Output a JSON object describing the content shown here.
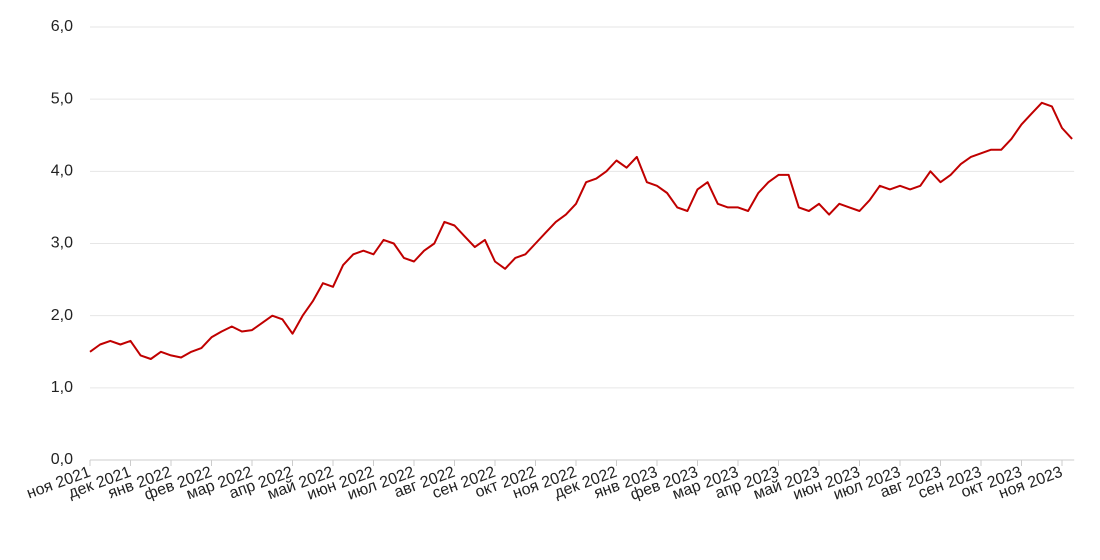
{
  "chart_data": {
    "type": "line",
    "categories": [
      "ноя 2021",
      null,
      null,
      null,
      "дек 2021",
      null,
      null,
      null,
      "янв 2022",
      null,
      null,
      null,
      "фев 2022",
      null,
      null,
      null,
      "мар 2022",
      null,
      null,
      null,
      "апр 2022",
      null,
      null,
      null,
      "май 2022",
      null,
      null,
      null,
      "июн 2022",
      null,
      null,
      null,
      "июл 2022",
      null,
      null,
      null,
      "авг 2022",
      null,
      null,
      null,
      "сен 2022",
      null,
      null,
      null,
      "окт 2022",
      null,
      null,
      null,
      "ноя 2022",
      null,
      null,
      null,
      "дек 2022",
      null,
      null,
      null,
      "янв 2023",
      null,
      null,
      null,
      "фев 2023",
      null,
      null,
      null,
      "мар 2023",
      null,
      null,
      null,
      "апр 2023",
      null,
      null,
      null,
      "май 2023",
      null,
      null,
      null,
      "июн 2023",
      null,
      null,
      null,
      "июл 2023",
      null,
      null,
      null,
      "авг 2023",
      null,
      null,
      null,
      "сен 2023",
      null,
      null,
      null,
      "окт 2023",
      null,
      null,
      null,
      "ноя 2023",
      null
    ],
    "series": [
      {
        "color": "#c00000",
        "values": [
          1.5,
          1.6,
          1.65,
          1.6,
          1.65,
          1.45,
          1.4,
          1.5,
          1.45,
          1.42,
          1.5,
          1.55,
          1.7,
          1.78,
          1.85,
          1.78,
          1.8,
          1.9,
          2.0,
          1.95,
          1.75,
          2.0,
          2.2,
          2.45,
          2.4,
          2.7,
          2.85,
          2.9,
          2.85,
          3.05,
          3.0,
          2.8,
          2.75,
          2.9,
          3.0,
          3.3,
          3.25,
          3.1,
          2.95,
          3.05,
          2.75,
          2.65,
          2.8,
          2.85,
          3.0,
          3.15,
          3.3,
          3.4,
          3.55,
          3.85,
          3.9,
          4.0,
          4.15,
          4.05,
          4.2,
          3.85,
          3.8,
          3.7,
          3.5,
          3.45,
          3.75,
          3.85,
          3.55,
          3.5,
          3.5,
          3.45,
          3.7,
          3.85,
          3.95,
          3.95,
          3.5,
          3.45,
          3.55,
          3.4,
          3.55,
          3.5,
          3.45,
          3.6,
          3.8,
          3.75,
          3.8,
          3.75,
          3.8,
          4.0,
          3.85,
          3.95,
          4.1,
          4.2,
          4.25,
          4.3,
          4.3,
          4.45,
          4.65,
          4.8,
          4.95,
          4.9,
          4.6,
          4.45
        ]
      }
    ],
    "ylim": [
      0,
      6
    ],
    "yticks": [
      {
        "value": 0,
        "label": "0,0"
      },
      {
        "value": 1,
        "label": "1,0"
      },
      {
        "value": 2,
        "label": "2,0"
      },
      {
        "value": 3,
        "label": "3,0"
      },
      {
        "value": 4,
        "label": "4,0"
      },
      {
        "value": 5,
        "label": "5,0"
      },
      {
        "value": 6,
        "label": "6,0"
      }
    ],
    "grid": true
  }
}
